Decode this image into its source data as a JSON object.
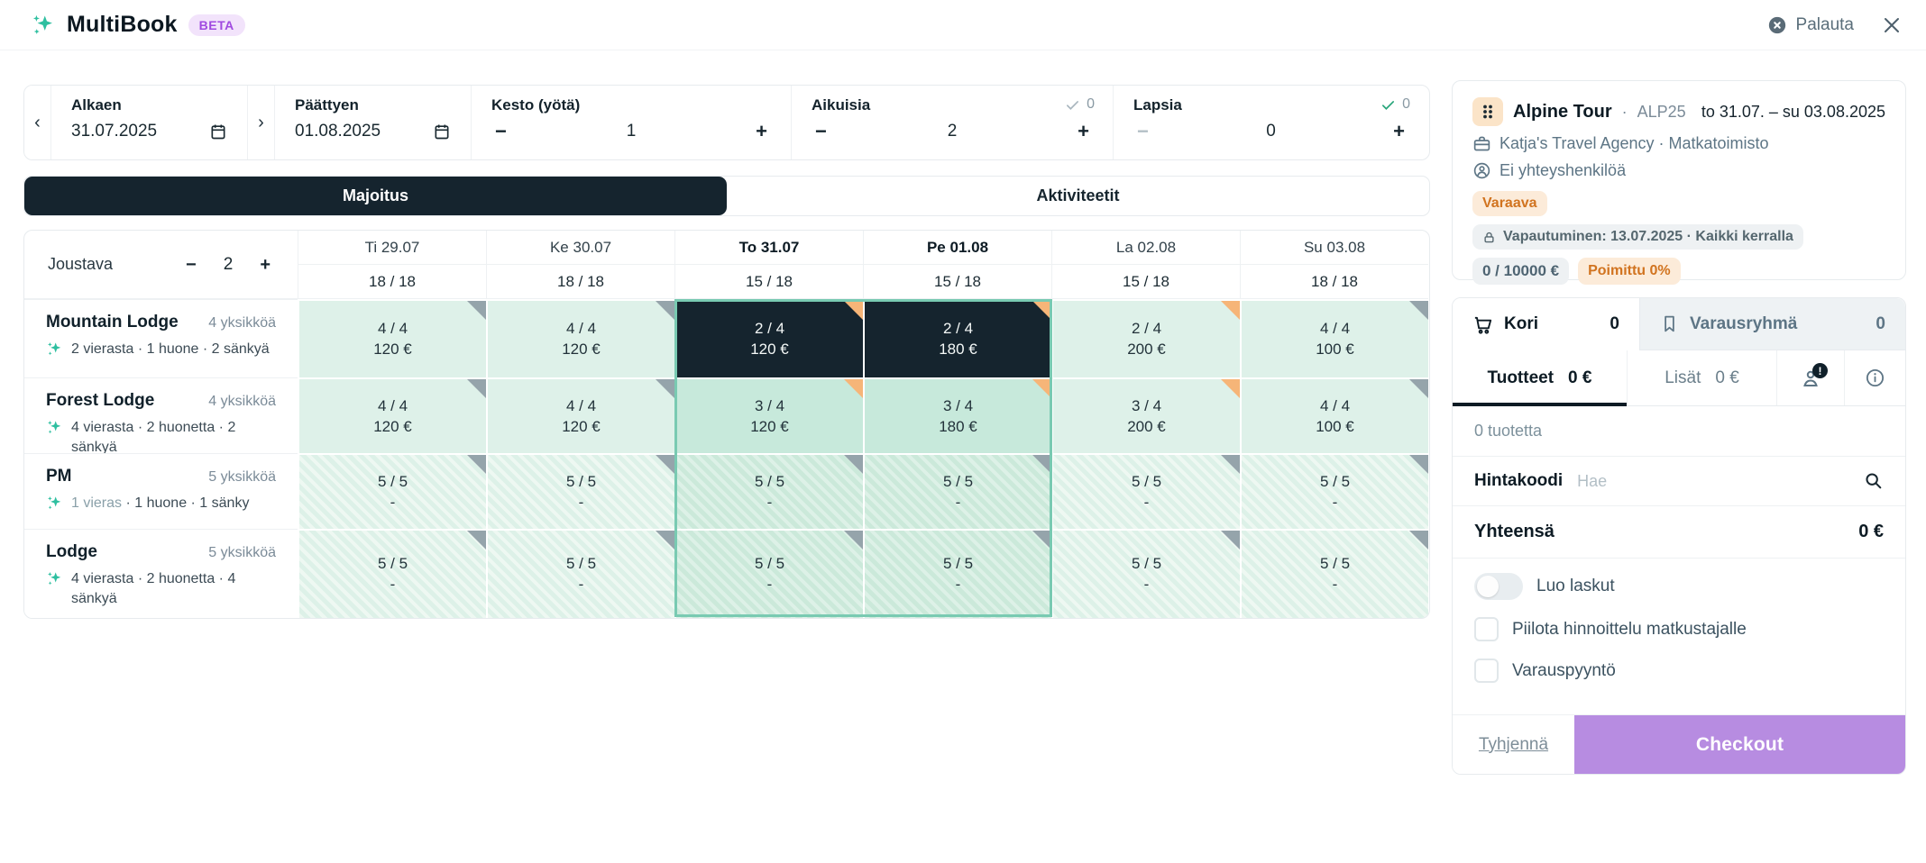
{
  "header": {
    "app_name": "MultiBook",
    "beta": "BETA",
    "reset_label": "Palauta"
  },
  "theme": {
    "accent_teal": "#2ebfa0",
    "dark_navy": "#15242e",
    "mint": "#def1e9",
    "accent_orange": "#e0761c",
    "flag_orange": "#f6b578",
    "flag_gray": "#95a4ab",
    "checkout_purple": "#b78ce1",
    "beta_purple": "#a04ae0"
  },
  "toolbar": {
    "start_label": "Alkaen",
    "start_value": "31.07.2025",
    "end_label": "Päättyen",
    "end_value": "01.08.2025",
    "duration_label": "Kesto (yötä)",
    "duration_value": "1",
    "adults_label": "Aikuisia",
    "adults_value": "2",
    "adults_assigned": "0",
    "children_label": "Lapsia",
    "children_value": "0",
    "children_assigned": "0"
  },
  "view_tabs": {
    "accommodation": "Majoitus",
    "activities": "Aktiviteetit"
  },
  "grid": {
    "flexible_label": "Joustava",
    "flexible_value": "2",
    "days": [
      {
        "label": "Ti 29.07",
        "capacity": "18 / 18",
        "selected": false
      },
      {
        "label": "Ke 30.07",
        "capacity": "18 / 18",
        "selected": false
      },
      {
        "label": "To 31.07",
        "capacity": "15 / 18",
        "selected": true
      },
      {
        "label": "Pe 01.08",
        "capacity": "15 / 18",
        "selected": true
      },
      {
        "label": "La 02.08",
        "capacity": "15 / 18",
        "selected": false
      },
      {
        "label": "Su 03.08",
        "capacity": "18 / 18",
        "selected": false
      }
    ],
    "rows": [
      {
        "name": "Mountain Lodge",
        "units": "4 yksikköä",
        "details": [
          {
            "text": "2 vierasta",
            "muted": false
          },
          {
            "text": " · 1 huone · 2 sänkyä",
            "muted": false
          }
        ],
        "cells": [
          {
            "availability": "4 / 4",
            "price": "120 €",
            "state": "avail-bg",
            "flag": "gray"
          },
          {
            "availability": "4 / 4",
            "price": "120 €",
            "state": "avail-bg",
            "flag": "gray"
          },
          {
            "availability": "2 / 4",
            "price": "120 €",
            "state": "sel-dark",
            "flag": "orange"
          },
          {
            "availability": "2 / 4",
            "price": "180 €",
            "state": "sel-dark",
            "flag": "orange"
          },
          {
            "availability": "2 / 4",
            "price": "200 €",
            "state": "avail-bg",
            "flag": "orange"
          },
          {
            "availability": "4 / 4",
            "price": "100 €",
            "state": "avail-bg",
            "flag": "gray"
          }
        ]
      },
      {
        "name": "Forest Lodge",
        "units": "4 yksikköä",
        "details": [
          {
            "text": "4 vierasta",
            "muted": false
          },
          {
            "text": " · 2 huonetta · 2 sänkyä",
            "muted": false
          }
        ],
        "cells": [
          {
            "availability": "4 / 4",
            "price": "120 €",
            "state": "avail-bg",
            "flag": "gray"
          },
          {
            "availability": "4 / 4",
            "price": "120 €",
            "state": "avail-bg",
            "flag": "gray"
          },
          {
            "availability": "3 / 4",
            "price": "120 €",
            "state": "sel-mid",
            "flag": "orange"
          },
          {
            "availability": "3 / 4",
            "price": "180 €",
            "state": "sel-mid",
            "flag": "orange"
          },
          {
            "availability": "3 / 4",
            "price": "200 €",
            "state": "avail-bg",
            "flag": "orange"
          },
          {
            "availability": "4 / 4",
            "price": "100 €",
            "state": "avail-bg",
            "flag": "gray"
          }
        ]
      },
      {
        "name": "PM",
        "units": "5 yksikköä",
        "details": [
          {
            "text": "1 vieras",
            "muted": true
          },
          {
            "text": " · 1 huone · 1 sänky",
            "muted": false
          }
        ],
        "cells": [
          {
            "availability": "5 / 5",
            "price": "-",
            "state": "striped",
            "flag": "gray"
          },
          {
            "availability": "5 / 5",
            "price": "-",
            "state": "striped",
            "flag": "gray"
          },
          {
            "availability": "5 / 5",
            "price": "-",
            "state": "striped-sel",
            "flag": "gray"
          },
          {
            "availability": "5 / 5",
            "price": "-",
            "state": "striped-sel",
            "flag": "gray"
          },
          {
            "availability": "5 / 5",
            "price": "-",
            "state": "striped",
            "flag": "gray"
          },
          {
            "availability": "5 / 5",
            "price": "-",
            "state": "striped",
            "flag": "gray"
          }
        ]
      },
      {
        "name": "Lodge",
        "units": "5 yksikköä",
        "details": [
          {
            "text": "4 vierasta",
            "muted": false
          },
          {
            "text": " · 2 huonetta · 4 sänkyä",
            "muted": false
          }
        ],
        "cells": [
          {
            "availability": "5 / 5",
            "price": "-",
            "state": "striped",
            "flag": "gray"
          },
          {
            "availability": "5 / 5",
            "price": "-",
            "state": "striped",
            "flag": "gray"
          },
          {
            "availability": "5 / 5",
            "price": "-",
            "state": "striped-sel",
            "flag": "gray"
          },
          {
            "availability": "5 / 5",
            "price": "-",
            "state": "striped-sel",
            "flag": "gray"
          },
          {
            "availability": "5 / 5",
            "price": "-",
            "state": "striped",
            "flag": "gray"
          },
          {
            "availability": "5 / 5",
            "price": "-",
            "state": "striped",
            "flag": "gray"
          }
        ]
      }
    ]
  },
  "booking": {
    "title": "Alpine Tour",
    "separator": "·",
    "code": "ALP25",
    "date_range": "to 31.07. – su 03.08.2025",
    "agency": "Katja's Travel Agency · Matkatoimisto",
    "contact": "Ei yhteyshenkilöä",
    "status": "Varaava",
    "release": "Vapautuminen: 13.07.2025 · Kaikki kerralla",
    "budget": "0 / 10000 €",
    "picked": "Poimittu 0%"
  },
  "cart": {
    "tab_cart": "Kori",
    "cart_count": "0",
    "tab_group": "Varausryhmä",
    "group_count": "0",
    "subtab_products": "Tuotteet",
    "products_total": "0 €",
    "subtab_extras": "Lisät",
    "extras_total": "0 €",
    "traveler_alert": "!",
    "empty_text": "0 tuotetta",
    "price_code_label": "Hintakoodi",
    "price_code_placeholder": "Hae",
    "total_label": "Yhteensä",
    "total_value": "0 €",
    "toggle_invoices": "Luo laskut",
    "checkbox_hide_pricing": "Piilota hinnoittelu matkustajalle",
    "checkbox_booking_request": "Varauspyyntö",
    "clear_label": "Tyhjennä",
    "checkout_label": "Checkout"
  }
}
